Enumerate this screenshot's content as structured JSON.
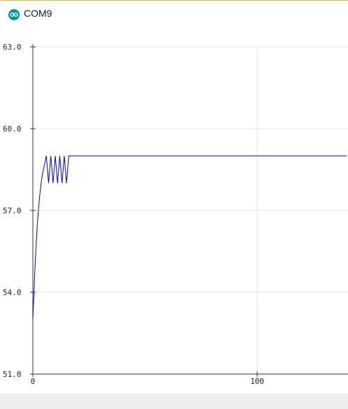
{
  "window": {
    "title": "COM9",
    "icon": "arduino-icon"
  },
  "colors": {
    "series": "#0000cc",
    "grid": "#e6e6e6",
    "axis": "#333333",
    "background": "#ffffff",
    "footer": "#efefef"
  },
  "chart_data": {
    "type": "line",
    "title": "",
    "xlabel": "",
    "ylabel": "",
    "xlim": [
      0,
      140
    ],
    "ylim": [
      51.0,
      63.0
    ],
    "y_ticks": [
      "51.0",
      "54.0",
      "57.0",
      "60.0",
      "63.0"
    ],
    "x_ticks": [
      "0",
      "100"
    ],
    "grid": true,
    "series": [
      {
        "values": [
          [
            0,
            53.0
          ],
          [
            1,
            55.0
          ],
          [
            2,
            56.5
          ],
          [
            3,
            57.5
          ],
          [
            4,
            58.2
          ],
          [
            5,
            58.6
          ],
          [
            6,
            59.0
          ],
          [
            7,
            58.0
          ],
          [
            8,
            59.0
          ],
          [
            9,
            58.0
          ],
          [
            10,
            59.0
          ],
          [
            11,
            58.0
          ],
          [
            12,
            59.0
          ],
          [
            13,
            58.0
          ],
          [
            14,
            59.0
          ],
          [
            15,
            58.0
          ],
          [
            16,
            59.0
          ],
          [
            140,
            59.0
          ]
        ]
      }
    ]
  }
}
